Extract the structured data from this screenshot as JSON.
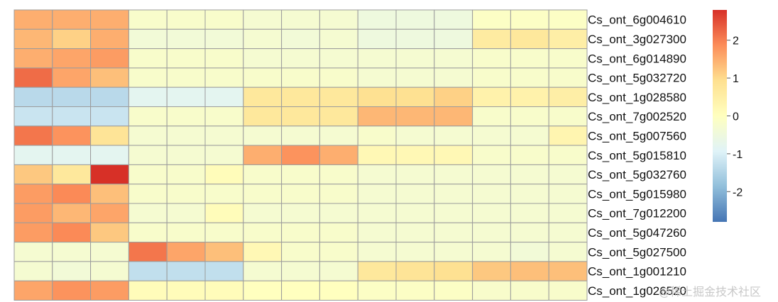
{
  "chart_data": {
    "type": "heatmap",
    "title": "",
    "xlabel": "",
    "ylabel": "",
    "rows": [
      "Cs_ont_6g004610",
      "Cs_ont_3g027300",
      "Cs_ont_6g014890",
      "Cs_ont_5g032720",
      "Cs_ont_1g028580",
      "Cs_ont_7g002520",
      "Cs_ont_5g007560",
      "Cs_ont_5g015810",
      "Cs_ont_5g032760",
      "Cs_ont_5g015980",
      "Cs_ont_7g012200",
      "Cs_ont_5g047260",
      "Cs_ont_5g027500",
      "Cs_ont_1g001210",
      "Cs_ont_1g026520"
    ],
    "values": [
      [
        1.5,
        1.5,
        1.5,
        -0.2,
        -0.2,
        -0.2,
        -0.3,
        -0.3,
        -0.3,
        -0.5,
        -0.5,
        -0.5,
        -0.1,
        -0.1,
        -0.1
      ],
      [
        1.4,
        1.1,
        1.5,
        -0.4,
        -0.4,
        -0.4,
        -0.3,
        -0.4,
        -0.3,
        -0.5,
        -0.5,
        -0.5,
        0.6,
        0.7,
        0.5
      ],
      [
        1.5,
        1.6,
        1.7,
        -0.2,
        -0.2,
        -0.2,
        -0.3,
        -0.3,
        -0.3,
        -0.3,
        -0.3,
        -0.3,
        -0.2,
        -0.2,
        -0.2
      ],
      [
        2.2,
        1.6,
        1.3,
        -0.2,
        -0.2,
        -0.2,
        -0.2,
        -0.2,
        -0.2,
        -0.3,
        -0.3,
        -0.3,
        -0.2,
        -0.2,
        -0.2
      ],
      [
        -1.4,
        -1.4,
        -1.4,
        -0.8,
        -0.8,
        -0.8,
        0.7,
        0.7,
        0.7,
        0.9,
        0.9,
        1.1,
        0.4,
        0.4,
        0.5
      ],
      [
        -1.2,
        -1.2,
        -1.2,
        -0.2,
        -0.2,
        -0.2,
        0.7,
        0.7,
        0.7,
        1.4,
        1.4,
        1.4,
        -0.2,
        -0.2,
        -0.2
      ],
      [
        2.1,
        1.8,
        0.8,
        -0.3,
        -0.3,
        -0.3,
        -0.3,
        -0.3,
        -0.3,
        -0.2,
        -0.3,
        -0.3,
        -0.3,
        -0.3,
        0.3
      ],
      [
        -0.8,
        -0.8,
        -0.8,
        -0.3,
        -0.3,
        -0.3,
        1.5,
        1.8,
        1.5,
        0.2,
        0.2,
        0.2,
        -0.2,
        -0.2,
        -0.2
      ],
      [
        1.2,
        0.7,
        2.8,
        -0.2,
        -0.2,
        0.1,
        -0.2,
        -0.2,
        -0.2,
        -0.3,
        -0.3,
        -0.3,
        -0.3,
        -0.3,
        -0.3
      ],
      [
        1.7,
        1.9,
        1.3,
        -0.2,
        -0.2,
        -0.2,
        -0.2,
        -0.2,
        -0.2,
        -0.3,
        -0.3,
        -0.3,
        -0.3,
        -0.3,
        -0.3
      ],
      [
        1.7,
        1.4,
        1.6,
        -0.3,
        -0.3,
        0.1,
        -0.3,
        -0.3,
        -0.3,
        -0.3,
        -0.3,
        -0.3,
        -0.3,
        -0.3,
        -0.3
      ],
      [
        1.7,
        1.9,
        1.2,
        -0.2,
        -0.2,
        -0.2,
        -0.2,
        -0.2,
        -0.2,
        -0.3,
        -0.3,
        -0.3,
        -0.3,
        -0.3,
        -0.3
      ],
      [
        -0.3,
        -0.3,
        -0.3,
        2.1,
        1.6,
        1.3,
        0.2,
        -0.2,
        -0.2,
        -0.3,
        -0.3,
        -0.3,
        -0.3,
        -0.4,
        -0.3
      ],
      [
        -0.3,
        -0.4,
        -0.3,
        -1.3,
        -1.3,
        -1.3,
        -0.3,
        -0.3,
        -0.3,
        0.7,
        0.8,
        0.9,
        1.2,
        1.3,
        1.3
      ],
      [
        1.6,
        1.8,
        1.7,
        0.1,
        0.1,
        0.1,
        0.0,
        0.0,
        0.0,
        -0.1,
        -0.1,
        -0.1,
        -0.2,
        -0.2,
        -0.2
      ]
    ],
    "color_scale": {
      "min": -2.8,
      "max": 2.8,
      "stops": [
        "#4575b4",
        "#91bfdb",
        "#e0f3f8",
        "#ffffbf",
        "#fee090",
        "#fc8d59",
        "#d73027"
      ],
      "ticks": [
        "2",
        "1",
        "0",
        "-1",
        "-2"
      ]
    },
    "legend_placement": "right",
    "grid": true
  },
  "watermark": "@稀土掘金技术社区"
}
